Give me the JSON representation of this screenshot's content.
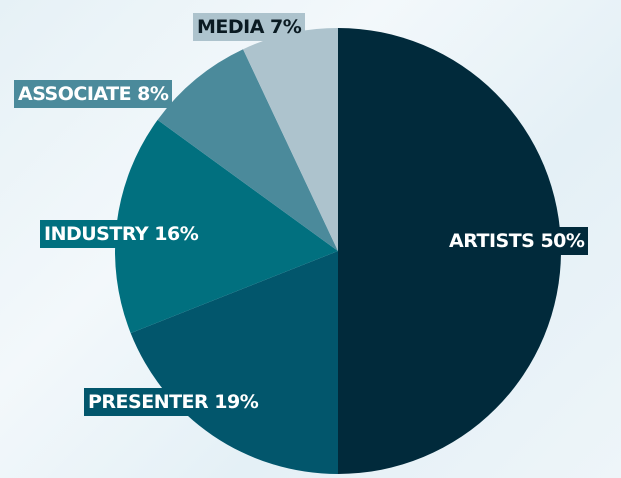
{
  "chart_data": {
    "type": "pie",
    "slices": [
      {
        "label": "ARTISTS 50%",
        "category": "ARTISTS",
        "value": 50,
        "color": "#012a3b",
        "label_bg": "#012a3b",
        "label_color": "#ffffff"
      },
      {
        "label": "PRESENTER 19%",
        "category": "PRESENTER",
        "value": 19,
        "color": "#02566c",
        "label_bg": "#02566c",
        "label_color": "#ffffff"
      },
      {
        "label": "INDUSTRY 16%",
        "category": "INDUSTRY",
        "value": 16,
        "color": "#01707f",
        "label_bg": "#01707f",
        "label_color": "#ffffff"
      },
      {
        "label": "ASSOCIATE 8%",
        "category": "ASSOCIATE",
        "value": 8,
        "color": "#4b8a9b",
        "label_bg": "#4b8a9b",
        "label_color": "#ffffff"
      },
      {
        "label": "MEDIA 7%",
        "category": "MEDIA",
        "value": 7,
        "color": "#adc3cd",
        "label_bg": "#adc3cd",
        "label_color": "#0a1a22"
      }
    ],
    "start_angle": "12 o'clock",
    "direction": "clockwise"
  }
}
